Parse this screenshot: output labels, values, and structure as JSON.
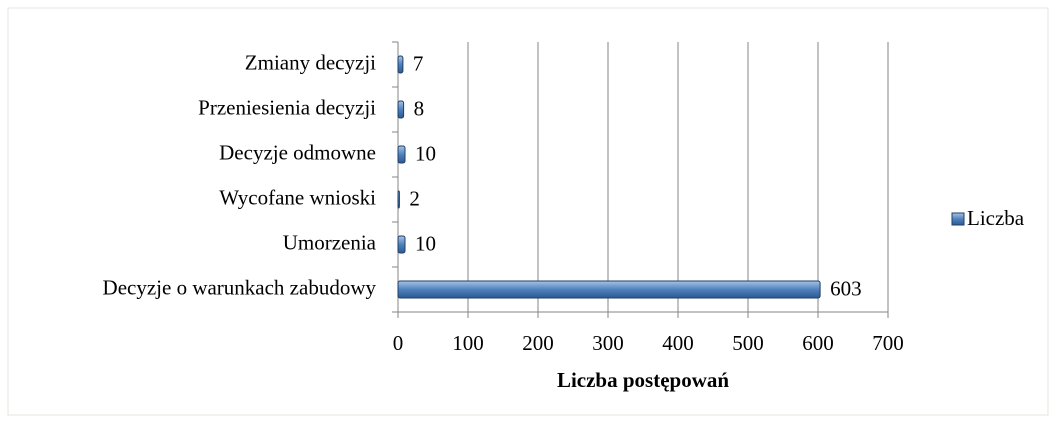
{
  "chart_data": {
    "type": "barh",
    "categories": [
      "Zmiany decyzji",
      "Przeniesienia decyzji",
      "Decyzje odmowne",
      "Wycofane wnioski",
      "Umorzenia",
      "Decyzje o warunkach zabudowy"
    ],
    "series": [
      {
        "name": "Liczba",
        "color": "#4f81bd",
        "values": [
          7,
          8,
          10,
          2,
          10,
          603
        ]
      }
    ],
    "xlabel": "Liczba postępowań",
    "xlim": [
      0,
      700
    ],
    "xticks": [
      0,
      100,
      200,
      300,
      400,
      500,
      600,
      700
    ],
    "grid": true,
    "legend": "right"
  }
}
